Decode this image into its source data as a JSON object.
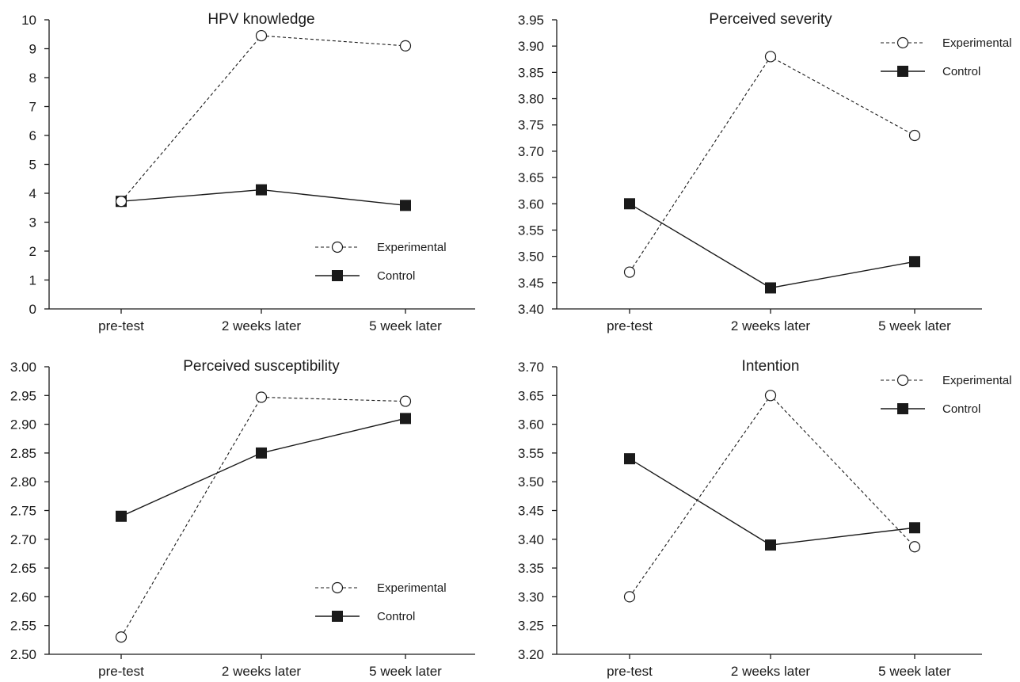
{
  "chart_data": [
    {
      "type": "line",
      "title": "HPV knowledge",
      "categories": [
        "pre-test",
        "2 weeks later",
        "5 week later"
      ],
      "ylim": [
        0,
        10
      ],
      "yticks": [
        "0",
        "1",
        "2",
        "3",
        "4",
        "5",
        "6",
        "7",
        "8",
        "9",
        "10"
      ],
      "legend_position": "lower-right",
      "series": [
        {
          "name": "Experimental",
          "style": "dashed-open-circle",
          "values": [
            3.72,
            9.45,
            9.1
          ]
        },
        {
          "name": "Control",
          "style": "solid-filled-square",
          "values": [
            3.72,
            4.12,
            3.58
          ]
        }
      ]
    },
    {
      "type": "line",
      "title": "Perceived severity",
      "categories": [
        "pre-test",
        "2 weeks later",
        "5 week later"
      ],
      "ylim": [
        3.4,
        3.95
      ],
      "yticks": [
        "3.40",
        "3.45",
        "3.50",
        "3.55",
        "3.60",
        "3.65",
        "3.70",
        "3.75",
        "3.80",
        "3.85",
        "3.90",
        "3.95"
      ],
      "legend_position": "top-right",
      "series": [
        {
          "name": "Experimental",
          "style": "dashed-open-circle",
          "values": [
            3.47,
            3.88,
            3.73
          ]
        },
        {
          "name": "Control",
          "style": "solid-filled-square",
          "values": [
            3.6,
            3.44,
            3.49
          ]
        }
      ]
    },
    {
      "type": "line",
      "title": "Perceived susceptibility",
      "categories": [
        "pre-test",
        "2 weeks later",
        "5 week later"
      ],
      "ylim": [
        2.5,
        3.0
      ],
      "yticks": [
        "2.50",
        "2.55",
        "2.60",
        "2.65",
        "2.70",
        "2.75",
        "2.80",
        "2.85",
        "2.90",
        "2.95",
        "3.00"
      ],
      "legend_position": "lower-right",
      "series": [
        {
          "name": "Experimental",
          "style": "dashed-open-circle",
          "values": [
            2.53,
            2.947,
            2.94
          ]
        },
        {
          "name": "Control",
          "style": "solid-filled-square",
          "values": [
            2.74,
            2.85,
            2.91
          ]
        }
      ]
    },
    {
      "type": "line",
      "title": "Intention",
      "categories": [
        "pre-test",
        "2 weeks later",
        "5 week later"
      ],
      "ylim": [
        3.2,
        3.7
      ],
      "yticks": [
        "3.20",
        "3.25",
        "3.30",
        "3.35",
        "3.40",
        "3.45",
        "3.50",
        "3.55",
        "3.60",
        "3.65",
        "3.70"
      ],
      "legend_position": "top-right",
      "series": [
        {
          "name": "Experimental",
          "style": "dashed-open-circle",
          "values": [
            3.3,
            3.65,
            3.387
          ]
        },
        {
          "name": "Control",
          "style": "solid-filled-square",
          "values": [
            3.54,
            3.39,
            3.42
          ]
        }
      ]
    }
  ]
}
